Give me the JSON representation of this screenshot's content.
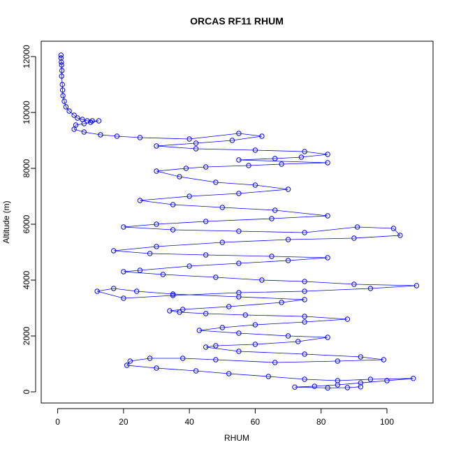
{
  "chart_data": {
    "type": "scatter",
    "title": "ORCAS RF11 RHUM",
    "xlabel": "RHUM",
    "ylabel": "Altitude (m)",
    "xlim": [
      -5,
      114
    ],
    "ylim": [
      -400,
      12550
    ],
    "x_ticks": [
      0,
      20,
      40,
      60,
      80,
      100
    ],
    "y_ticks": [
      0,
      2000,
      4000,
      6000,
      8000,
      10000,
      12000
    ],
    "series_color": "#0000ff",
    "marker": "open-circle",
    "connected": true,
    "series": [
      {
        "points": [
          [
            1.0,
            12050
          ],
          [
            1.0,
            11950
          ],
          [
            1.1,
            11800
          ],
          [
            1.2,
            11700
          ],
          [
            1.3,
            11500
          ],
          [
            1.2,
            11300
          ],
          [
            1.4,
            11000
          ],
          [
            1.5,
            10800
          ],
          [
            1.6,
            10600
          ],
          [
            2.0,
            10400
          ],
          [
            2.5,
            10200
          ],
          [
            3.5,
            10050
          ],
          [
            5.0,
            9900
          ],
          [
            6.0,
            9800
          ],
          [
            7.5,
            9750
          ],
          [
            9.0,
            9700
          ],
          [
            10.5,
            9700
          ],
          [
            12.5,
            9700
          ],
          [
            10.0,
            9650
          ],
          [
            8.0,
            9600
          ],
          [
            5.5,
            9550
          ],
          [
            5.0,
            9400
          ],
          [
            8.0,
            9300
          ],
          [
            13.0,
            9200
          ],
          [
            18.0,
            9150
          ],
          [
            25.0,
            9100
          ],
          [
            40.0,
            9050
          ],
          [
            55.0,
            9250
          ],
          [
            62.0,
            9150
          ],
          [
            53.0,
            9000
          ],
          [
            42.0,
            8900
          ],
          [
            30.0,
            8800
          ],
          [
            42.0,
            8700
          ],
          [
            60.0,
            8650
          ],
          [
            75.0,
            8600
          ],
          [
            82.0,
            8500
          ],
          [
            74.0,
            8400
          ],
          [
            66.0,
            8350
          ],
          [
            55.0,
            8300
          ],
          [
            82.0,
            8200
          ],
          [
            68.0,
            8150
          ],
          [
            58.0,
            8100
          ],
          [
            45.0,
            8050
          ],
          [
            39.0,
            8000
          ],
          [
            30.0,
            7900
          ],
          [
            37.0,
            7700
          ],
          [
            48.0,
            7500
          ],
          [
            60.0,
            7400
          ],
          [
            70.0,
            7250
          ],
          [
            55.0,
            7100
          ],
          [
            40.0,
            7000
          ],
          [
            25.0,
            6850
          ],
          [
            35.0,
            6700
          ],
          [
            50.0,
            6600
          ],
          [
            66.0,
            6500
          ],
          [
            82.0,
            6300
          ],
          [
            65.0,
            6200
          ],
          [
            45.0,
            6100
          ],
          [
            30.0,
            6000
          ],
          [
            20.0,
            5900
          ],
          [
            35.0,
            5800
          ],
          [
            55.0,
            5750
          ],
          [
            75.0,
            5700
          ],
          [
            91.0,
            5900
          ],
          [
            102.0,
            5850
          ],
          [
            104.0,
            5600
          ],
          [
            90.0,
            5500
          ],
          [
            70.0,
            5450
          ],
          [
            50.0,
            5350
          ],
          [
            30.0,
            5200
          ],
          [
            17.0,
            5050
          ],
          [
            28.0,
            4950
          ],
          [
            45.0,
            4900
          ],
          [
            65.0,
            4850
          ],
          [
            82.0,
            4800
          ],
          [
            70.0,
            4700
          ],
          [
            55.0,
            4600
          ],
          [
            40.0,
            4500
          ],
          [
            25.0,
            4350
          ],
          [
            20.0,
            4300
          ],
          [
            32.0,
            4200
          ],
          [
            48.0,
            4100
          ],
          [
            62.0,
            4000
          ],
          [
            75.0,
            3950
          ],
          [
            90.0,
            3850
          ],
          [
            109.0,
            3800
          ],
          [
            95.0,
            3700
          ],
          [
            75.0,
            3600
          ],
          [
            55.0,
            3550
          ],
          [
            35.0,
            3450
          ],
          [
            20.0,
            3350
          ],
          [
            12.0,
            3600
          ],
          [
            17.0,
            3700
          ],
          [
            24.0,
            3600
          ],
          [
            35.0,
            3500
          ],
          [
            55.0,
            3400
          ],
          [
            75.0,
            3300
          ],
          [
            68.0,
            3200
          ],
          [
            52.0,
            3050
          ],
          [
            38.0,
            2950
          ],
          [
            34.0,
            2900
          ],
          [
            37.0,
            2850
          ],
          [
            45.0,
            2800
          ],
          [
            57.0,
            2750
          ],
          [
            75.0,
            2700
          ],
          [
            88.0,
            2600
          ],
          [
            75.0,
            2500
          ],
          [
            60.0,
            2400
          ],
          [
            50.0,
            2300
          ],
          [
            43.0,
            2200
          ],
          [
            55.0,
            2100
          ],
          [
            70.0,
            2000
          ],
          [
            82.0,
            1950
          ],
          [
            73.0,
            1800
          ],
          [
            60.0,
            1700
          ],
          [
            48.0,
            1650
          ],
          [
            45.0,
            1600
          ],
          [
            55.0,
            1450
          ],
          [
            75.0,
            1350
          ],
          [
            92.0,
            1250
          ],
          [
            99.0,
            1150
          ],
          [
            85.0,
            1100
          ],
          [
            66.0,
            1050
          ],
          [
            48.0,
            1150
          ],
          [
            38.0,
            1200
          ],
          [
            28.0,
            1200
          ],
          [
            22.0,
            1100
          ],
          [
            21.0,
            950
          ],
          [
            30.0,
            850
          ],
          [
            42.0,
            750
          ],
          [
            52.0,
            650
          ],
          [
            64.0,
            550
          ],
          [
            75.0,
            450
          ],
          [
            85.0,
            400
          ],
          [
            95.0,
            450
          ],
          [
            108.0,
            480
          ],
          [
            100.0,
            400
          ],
          [
            92.0,
            320
          ],
          [
            85.0,
            250
          ],
          [
            78.0,
            200
          ],
          [
            72.0,
            170
          ],
          [
            82.0,
            140
          ],
          [
            88.0,
            150
          ],
          [
            92.0,
            180
          ]
        ]
      }
    ]
  }
}
